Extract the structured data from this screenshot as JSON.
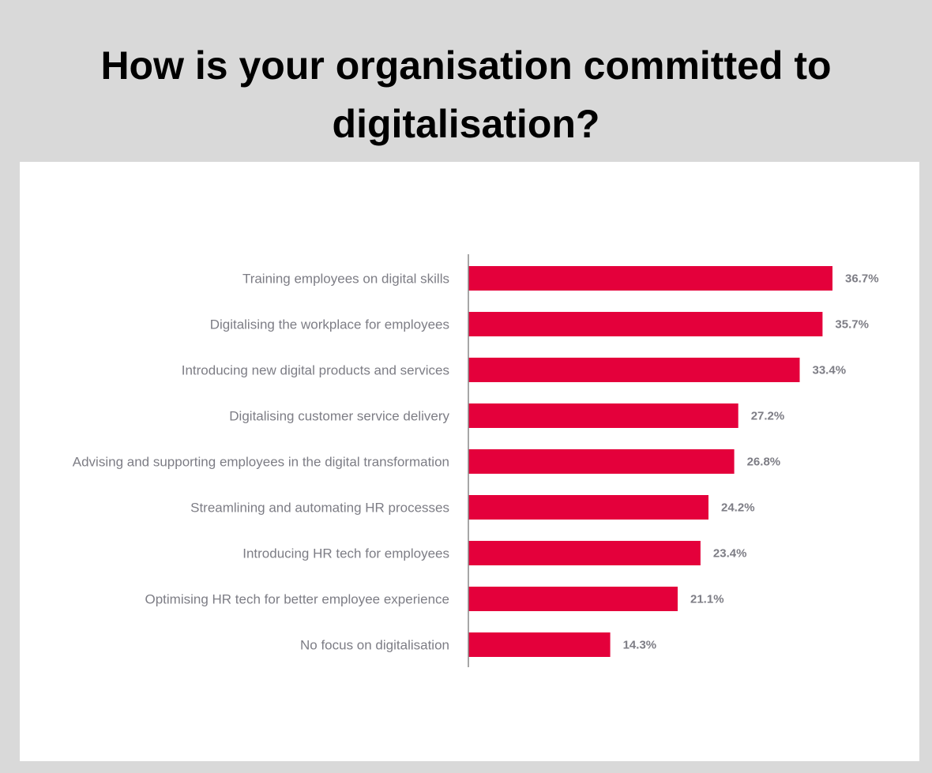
{
  "title": "How is your organisation committed to digitalisation?",
  "colors": {
    "background": "#d9d9d9",
    "card": "#ffffff",
    "bar": "#e4003b",
    "axis": "#8a8a8a",
    "label": "#7d7d85"
  },
  "chart_data": {
    "type": "bar",
    "orientation": "horizontal",
    "title": "How is your organisation committed to digitalisation?",
    "categories": [
      "Training employees on digital skills",
      "Digitalising the workplace for employees",
      "Introducing new digital products and services",
      "Digitalising customer service delivery",
      "Advising and supporting employees in the digital transformation",
      "Streamlining and automating HR processes",
      "Introducing HR tech for employees",
      "Optimising HR tech for better employee experience",
      "No focus on digitalisation"
    ],
    "values": [
      36.7,
      35.7,
      33.4,
      27.2,
      26.8,
      24.2,
      23.4,
      21.1,
      14.3
    ],
    "value_labels": [
      "36.7%",
      "35.7%",
      "33.4%",
      "27.2%",
      "26.8%",
      "24.2%",
      "23.4%",
      "21.1%",
      "14.3%"
    ],
    "unit": "%",
    "xlim": [
      0,
      36.7
    ],
    "grid": false,
    "legend": "none"
  }
}
